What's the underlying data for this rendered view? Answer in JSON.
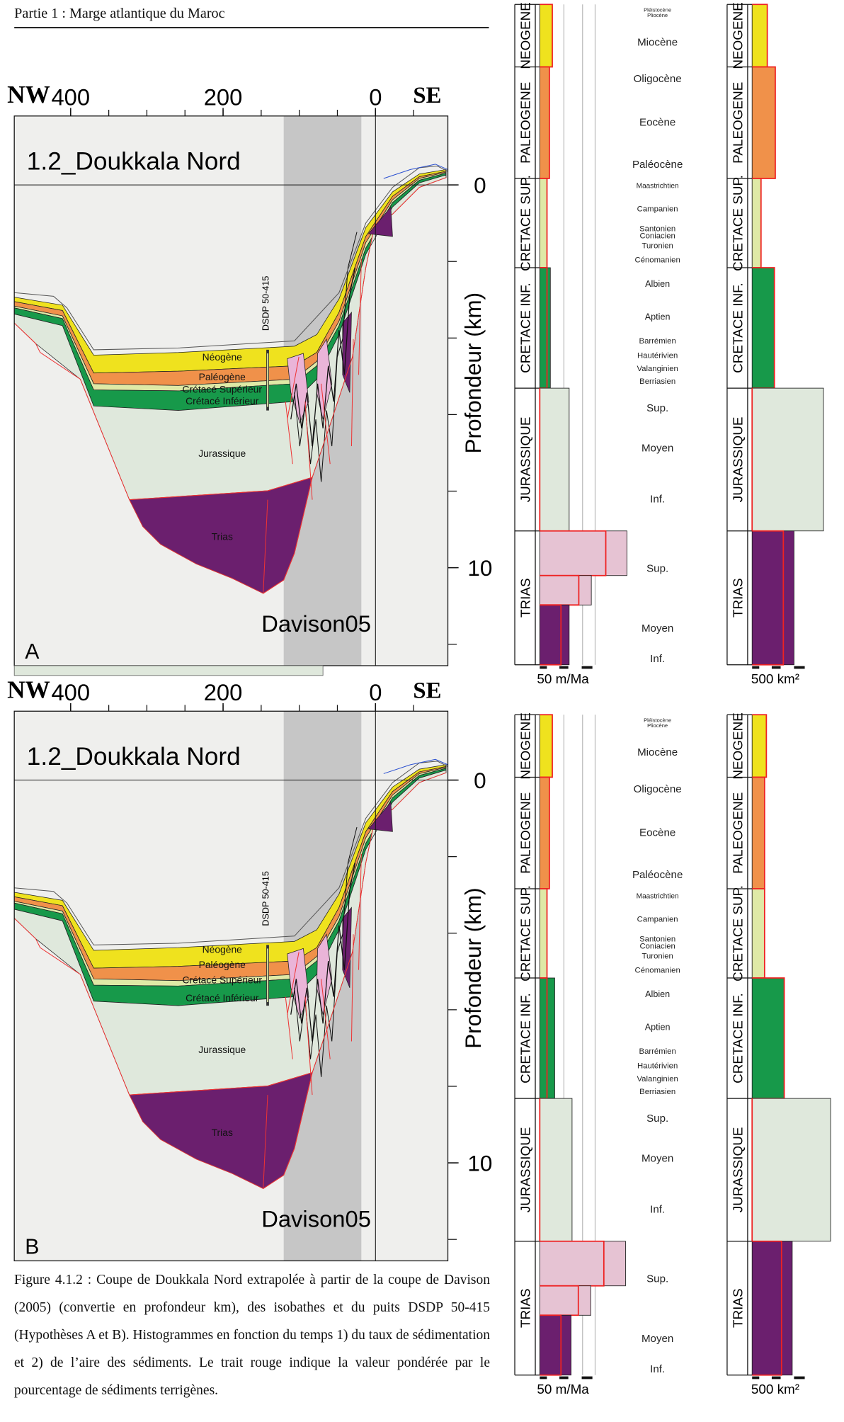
{
  "header": {
    "title": "Partie 1 : Marge atlantique du Maroc"
  },
  "stratigraphy": {
    "periods": [
      {
        "name": "NEOGENE",
        "color": "#efe21e"
      },
      {
        "name": "PALEOGENE",
        "color": "#f0914a"
      },
      {
        "name": "CRETACE SUP.",
        "color": "#dfe9a6"
      },
      {
        "name": "CRETACE INF.",
        "color": "#17994a"
      },
      {
        "name": "JURASSIQUE",
        "color": "#dfe8dc"
      },
      {
        "name": "TRIAS",
        "color": "#6b1f6e"
      }
    ],
    "rate_colors": [
      "#efe21e",
      "#f0914a",
      "#dfe9a6",
      "#17994a",
      "#dfe8dc",
      "#e6c3d3",
      "#e6c3d3",
      "#6b1f6e"
    ],
    "stages": [
      "Pléistocène",
      "Pliocène",
      "Miocène",
      "Oligocène",
      "Eocène",
      "Paléocène",
      "Maastrichtien",
      "Campanien",
      "Santonien",
      "Coniacien",
      "Turonien",
      "Cénomanien",
      "Albien",
      "Aptien",
      "Barrémien",
      "Hautérivien",
      "Valanginien",
      "Berriasien",
      "Sup.",
      "Moyen",
      "Inf.",
      "Sup.",
      "Moyen",
      "Inf."
    ]
  },
  "panels": [
    {
      "letter": "A",
      "title": "1.2_Doukkala Nord",
      "source": "Davison05",
      "well": "DSDP 50-415",
      "left": "NW",
      "right": "SE",
      "xlim": [
        474,
        -95
      ],
      "xticks": [
        400,
        200,
        0
      ],
      "ylim": [
        -1.8,
        12.56
      ],
      "yticks": [
        0,
        10
      ],
      "y_label": "Profondeur (km)",
      "layers": [
        "Néogène",
        "Paléogène",
        "Crétacé Supérieur",
        "Crétacé Inférieur",
        "Jurassique",
        "Trias"
      ],
      "rate": {
        "scale": 50,
        "scale_label": "50 m/Ma",
        "values": [
          26,
          20,
          15,
          22,
          61,
          181,
          107,
          61
        ],
        "weighted": [
          26,
          20,
          15,
          15,
          0,
          137,
          81,
          44
        ]
      },
      "area": {
        "scale": 500,
        "scale_label": "500 km²",
        "values": [
          315,
          481,
          185,
          463,
          1481,
          870
        ],
        "weighted": [
          315,
          481,
          185,
          463,
          0,
          648
        ]
      }
    },
    {
      "letter": "B",
      "title": "1.2_Doukkala Nord",
      "source": "Davison05",
      "well": "DSDP 50-415",
      "left": "NW",
      "right": "SE",
      "xlim": [
        474,
        -95
      ],
      "xticks": [
        400,
        200,
        0
      ],
      "ylim": [
        -1.8,
        12.56
      ],
      "yticks": [
        0,
        10
      ],
      "y_label": "Profondeur (km)",
      "layers": [
        "Néogène",
        "Paléogène",
        "Crétacé Supérieur",
        "Crétacé Inférieur",
        "Jurassique",
        "Trias"
      ],
      "rate": {
        "scale": 50,
        "scale_label": "50 m/Ma",
        "values": [
          26,
          20,
          15,
          31,
          67,
          178,
          106,
          65
        ],
        "weighted": [
          26,
          20,
          15,
          15,
          0,
          133,
          80,
          44
        ]
      },
      "area": {
        "scale": 500,
        "scale_label": "500 km²",
        "values": [
          296,
          259,
          259,
          667,
          1630,
          833
        ],
        "weighted": [
          296,
          259,
          259,
          667,
          0,
          611
        ]
      }
    }
  ],
  "caption": "Figure 4.1.2 : Coupe de Doukkala Nord extrapolée à partir de la coupe de Davison (2005) (convertie en profondeur km), des isobathes et du puits DSDP 50-415 (Hypothèses A et B). Histogrammes en fonction du temps 1) du taux de sédimentation et 2) de l’aire des sédiments. Le trait rouge indique la valeur pondérée par le pourcentage de sédiments terrigènes."
}
